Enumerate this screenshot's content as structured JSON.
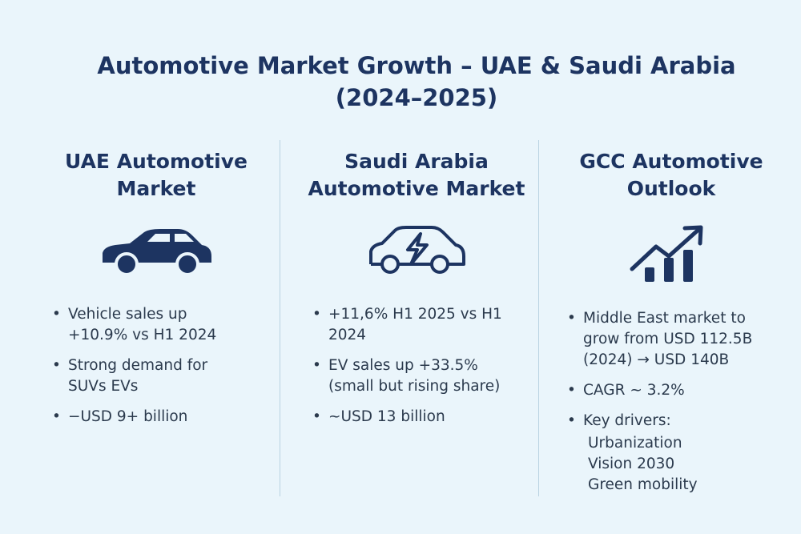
{
  "title": "Automotive Market Growth – UAE & Saudi Arabia (2024–2025)",
  "columns": [
    {
      "heading": "UAE Automotive Market",
      "bullets": [
        "Vehicle sales up +10.9% vs H1 2024",
        "Strong demand for SUVs EVs",
        "−USD 9+ billion"
      ]
    },
    {
      "heading": "Saudi Arabia Automotive Market",
      "bullets": [
        "+11,6% H1 2025 vs H1 2024",
        "EV sales up +33.5% (small but rising share)",
        "~USD 13 billion"
      ]
    },
    {
      "heading": "GCC Automotive Outlook",
      "bullets": [
        "Middle East market to grow from USD 112.5B (2024) → USD 140B",
        "CAGR ~ 3.2%",
        "Key drivers:"
      ],
      "drivers": [
        "Urbanization",
        "Vision 2030",
        "Green mobility"
      ]
    }
  ]
}
